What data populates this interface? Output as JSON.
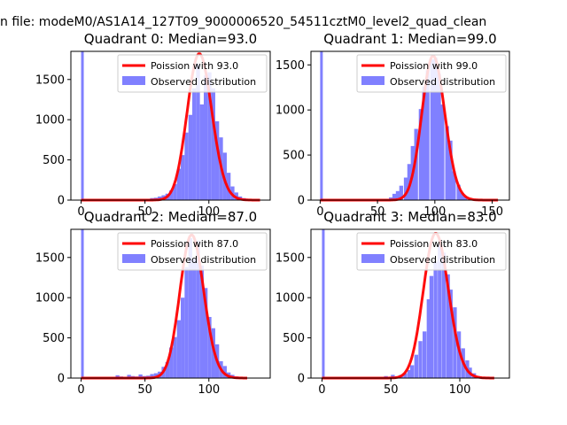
{
  "figure": {
    "suptitle": "n file: modeM0/AS1A14_127T09_9000006520_54511cztM0_level2_quad_clean"
  },
  "colors": {
    "hist_fill": "#8080ff",
    "curve": "#ff0000",
    "axis": "#000000",
    "legend_border": "#cccccc"
  },
  "chart_data": [
    {
      "type": "bar",
      "title": "Quadrant 0: Median=93.0",
      "legend": {
        "placement": "top-right",
        "entries": [
          "Poission with 93.0",
          "Observed distribution"
        ]
      },
      "xlim": [
        -8,
        148
      ],
      "ylim": [
        0,
        1850
      ],
      "xticks": [
        0,
        50,
        100
      ],
      "yticks": [
        0,
        500,
        1000,
        1500
      ],
      "hist": {
        "bin_width": 3.0,
        "bins": [
          [
            0,
            1850
          ],
          [
            48,
            5
          ],
          [
            51,
            10
          ],
          [
            54,
            25
          ],
          [
            57,
            30
          ],
          [
            60,
            45
          ],
          [
            63,
            60
          ],
          [
            66,
            80
          ],
          [
            69,
            120
          ],
          [
            72,
            200
          ],
          [
            75,
            390
          ],
          [
            78,
            560
          ],
          [
            81,
            840
          ],
          [
            84,
            1060
          ],
          [
            87,
            1390
          ],
          [
            90,
            1700
          ],
          [
            93,
            1190
          ],
          [
            96,
            1550
          ],
          [
            99,
            1590
          ],
          [
            102,
            1390
          ],
          [
            105,
            980
          ],
          [
            108,
            780
          ],
          [
            111,
            590
          ],
          [
            114,
            340
          ],
          [
            117,
            170
          ],
          [
            120,
            95
          ],
          [
            123,
            45
          ],
          [
            126,
            25
          ],
          [
            129,
            15
          ]
        ]
      },
      "poisson": {
        "mean": 93.0,
        "scale": 1820,
        "x_range": [
          0,
          140
        ]
      }
    },
    {
      "type": "bar",
      "title": "Quadrant 1: Median=99.0",
      "legend": {
        "placement": "top-right",
        "entries": [
          "Poission with 99.0",
          "Observed distribution"
        ]
      },
      "xlim": [
        -8,
        165
      ],
      "ylim": [
        0,
        1650
      ],
      "xticks": [
        0,
        50,
        100,
        150
      ],
      "yticks": [
        0,
        500,
        1000,
        1500
      ],
      "hist": {
        "bin_width": 3.3,
        "bins": [
          [
            0,
            1650
          ],
          [
            56,
            10
          ],
          [
            60,
            30
          ],
          [
            63,
            70
          ],
          [
            66,
            100
          ],
          [
            69,
            160
          ],
          [
            73,
            250
          ],
          [
            76,
            400
          ],
          [
            79,
            600
          ],
          [
            82,
            790
          ],
          [
            86,
            1010
          ],
          [
            89,
            1260
          ],
          [
            92,
            1440
          ],
          [
            96,
            1560
          ],
          [
            99,
            1580
          ],
          [
            102,
            1400
          ],
          [
            105,
            1060
          ],
          [
            109,
            820
          ],
          [
            112,
            660
          ],
          [
            115,
            320
          ],
          [
            119,
            170
          ],
          [
            122,
            80
          ],
          [
            125,
            40
          ],
          [
            129,
            15
          ],
          [
            132,
            5
          ]
        ]
      },
      "poisson": {
        "mean": 99.0,
        "scale": 1600,
        "x_range": [
          0,
          155
        ]
      }
    },
    {
      "type": "bar",
      "title": "Quadrant 2: Median=87.0",
      "legend": {
        "placement": "top-right",
        "entries": [
          "Poission with 87.0",
          "Observed distribution"
        ]
      },
      "xlim": [
        -8,
        148
      ],
      "ylim": [
        0,
        1850
      ],
      "xticks": [
        0,
        50,
        100
      ],
      "yticks": [
        0,
        500,
        1000,
        1500
      ],
      "hist": {
        "bin_width": 3.0,
        "bins": [
          [
            0,
            1850
          ],
          [
            21,
            5
          ],
          [
            24,
            10
          ],
          [
            27,
            35
          ],
          [
            30,
            20
          ],
          [
            33,
            15
          ],
          [
            36,
            40
          ],
          [
            39,
            25
          ],
          [
            42,
            20
          ],
          [
            45,
            45
          ],
          [
            48,
            25
          ],
          [
            51,
            30
          ],
          [
            54,
            50
          ],
          [
            57,
            60
          ],
          [
            60,
            80
          ],
          [
            63,
            140
          ],
          [
            66,
            200
          ],
          [
            69,
            380
          ],
          [
            72,
            510
          ],
          [
            75,
            720
          ],
          [
            78,
            1000
          ],
          [
            81,
            1380
          ],
          [
            84,
            1740
          ],
          [
            87,
            1490
          ],
          [
            90,
            1710
          ],
          [
            93,
            1400
          ],
          [
            96,
            1120
          ],
          [
            99,
            760
          ],
          [
            102,
            620
          ],
          [
            105,
            420
          ],
          [
            108,
            210
          ],
          [
            111,
            150
          ],
          [
            114,
            70
          ],
          [
            117,
            40
          ],
          [
            120,
            20
          ],
          [
            123,
            10
          ]
        ]
      },
      "poisson": {
        "mean": 87.0,
        "scale": 1780,
        "x_range": [
          0,
          130
        ]
      }
    },
    {
      "type": "bar",
      "title": "Quadrant 3: Median=83.0",
      "legend": {
        "placement": "top-right",
        "entries": [
          "Poission with 83.0",
          "Observed distribution"
        ]
      },
      "xlim": [
        -8,
        136
      ],
      "ylim": [
        0,
        1850
      ],
      "xticks": [
        0,
        50,
        100
      ],
      "yticks": [
        0,
        500,
        1000,
        1500
      ],
      "hist": {
        "bin_width": 2.8,
        "bins": [
          [
            0,
            1850
          ],
          [
            42,
            10
          ],
          [
            45,
            25
          ],
          [
            48,
            15
          ],
          [
            50,
            40
          ],
          [
            53,
            20
          ],
          [
            56,
            40
          ],
          [
            59,
            60
          ],
          [
            62,
            100
          ],
          [
            64,
            160
          ],
          [
            67,
            290
          ],
          [
            70,
            460
          ],
          [
            73,
            580
          ],
          [
            76,
            980
          ],
          [
            78,
            1270
          ],
          [
            81,
            1450
          ],
          [
            84,
            1660
          ],
          [
            87,
            1560
          ],
          [
            90,
            1290
          ],
          [
            92,
            1100
          ],
          [
            95,
            880
          ],
          [
            98,
            580
          ],
          [
            101,
            370
          ],
          [
            104,
            220
          ],
          [
            106,
            130
          ],
          [
            109,
            60
          ],
          [
            112,
            25
          ],
          [
            115,
            10
          ]
        ]
      },
      "poisson": {
        "mean": 83.0,
        "scale": 1800,
        "x_range": [
          0,
          125
        ]
      }
    }
  ]
}
